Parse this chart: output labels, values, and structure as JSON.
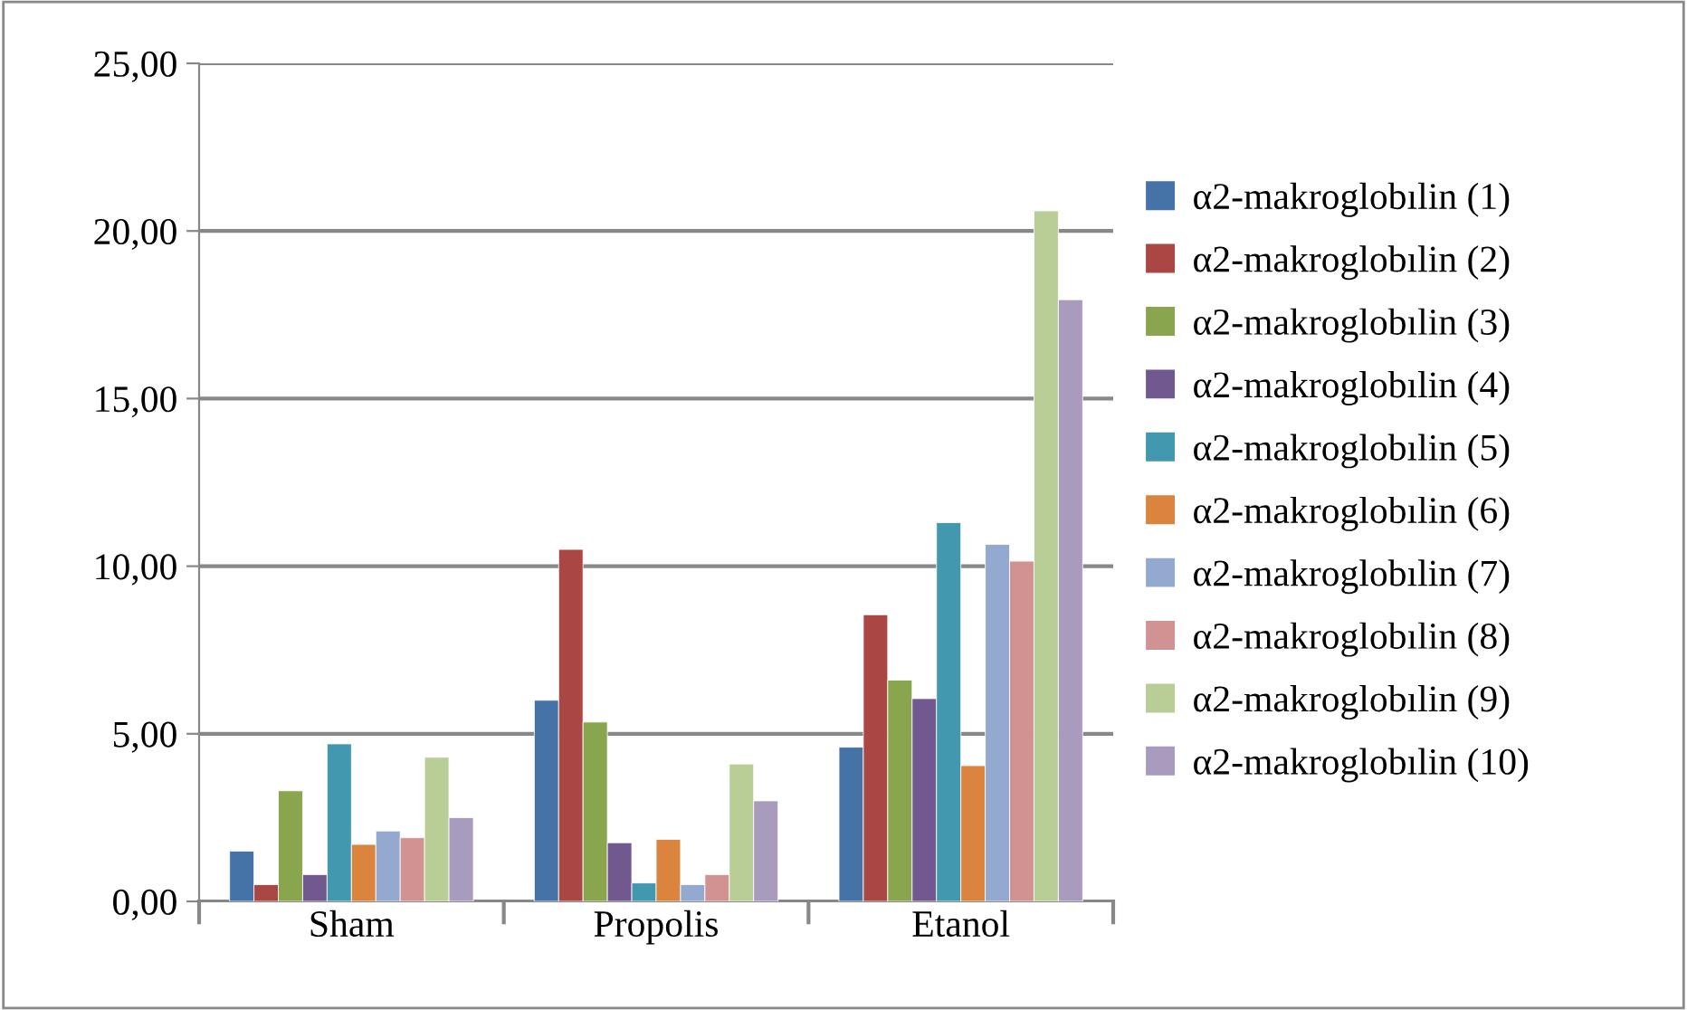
{
  "chart_data": {
    "type": "bar",
    "categories": [
      "Sham",
      "Propolis",
      "Etanol"
    ],
    "series": [
      {
        "name": "α2-makroglobılin (1)",
        "color": "#4572a7",
        "values": [
          1.5,
          6.0,
          4.6
        ]
      },
      {
        "name": "α2-makroglobılin (2)",
        "color": "#aa4643",
        "values": [
          0.5,
          10.5,
          8.55
        ]
      },
      {
        "name": "α2-makroglobılin (3)",
        "color": "#89a54e",
        "values": [
          3.3,
          5.35,
          6.6
        ]
      },
      {
        "name": "α2-makroglobılin (4)",
        "color": "#71588f",
        "values": [
          0.8,
          1.75,
          6.05
        ]
      },
      {
        "name": "α2-makroglobılin (5)",
        "color": "#4198af",
        "values": [
          4.7,
          0.55,
          11.3
        ]
      },
      {
        "name": "α2-makroglobılin (6)",
        "color": "#db843d",
        "values": [
          1.7,
          1.85,
          4.05
        ]
      },
      {
        "name": "α2-makroglobılin (7)",
        "color": "#93a9cf",
        "values": [
          2.1,
          0.5,
          10.65
        ]
      },
      {
        "name": "α2-makroglobılin (8)",
        "color": "#d19392",
        "values": [
          1.9,
          0.8,
          10.15
        ]
      },
      {
        "name": "α2-makroglobılin (9)",
        "color": "#b9cd96",
        "values": [
          4.3,
          4.1,
          20.6
        ]
      },
      {
        "name": "α2-makroglobılin (10)",
        "color": "#a99bbd",
        "values": [
          2.5,
          3.0,
          17.95
        ]
      }
    ],
    "ylim": [
      0,
      25
    ],
    "yticks": [
      {
        "value": 0,
        "label": "0,00"
      },
      {
        "value": 5,
        "label": "5,00"
      },
      {
        "value": 10,
        "label": "10,00"
      },
      {
        "value": 15,
        "label": "15,00"
      },
      {
        "value": 20,
        "label": "20,00"
      },
      {
        "value": 25,
        "label": "25,00"
      }
    ],
    "grid": "y",
    "legend": "right"
  }
}
